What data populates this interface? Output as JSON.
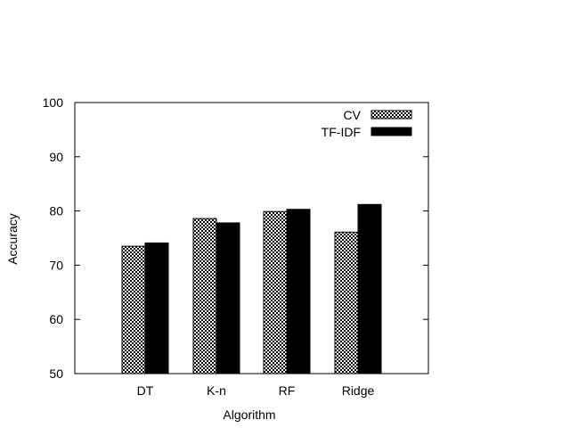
{
  "chart_data": {
    "type": "bar",
    "title": "",
    "xlabel": "Algorithm",
    "ylabel": "Accuracy",
    "ylim": [
      50,
      100
    ],
    "yticks": [
      "50",
      "60",
      "70",
      "80",
      "90",
      "100"
    ],
    "categories": [
      "DT",
      "K-n",
      "RF",
      "Ridge"
    ],
    "series": [
      {
        "name": "CV",
        "values": [
          73.5,
          78.6,
          79.9,
          76.1
        ],
        "pattern": "checker"
      },
      {
        "name": "TF-IDF",
        "values": [
          74.1,
          77.8,
          80.3,
          81.2
        ],
        "pattern": "solid"
      }
    ],
    "legend_position": "top-right",
    "grid": false,
    "colors": {
      "cv_fill": "#ffffff",
      "cv_pattern": "#000000",
      "tfidf_fill": "#000000",
      "axis": "#000000"
    }
  }
}
